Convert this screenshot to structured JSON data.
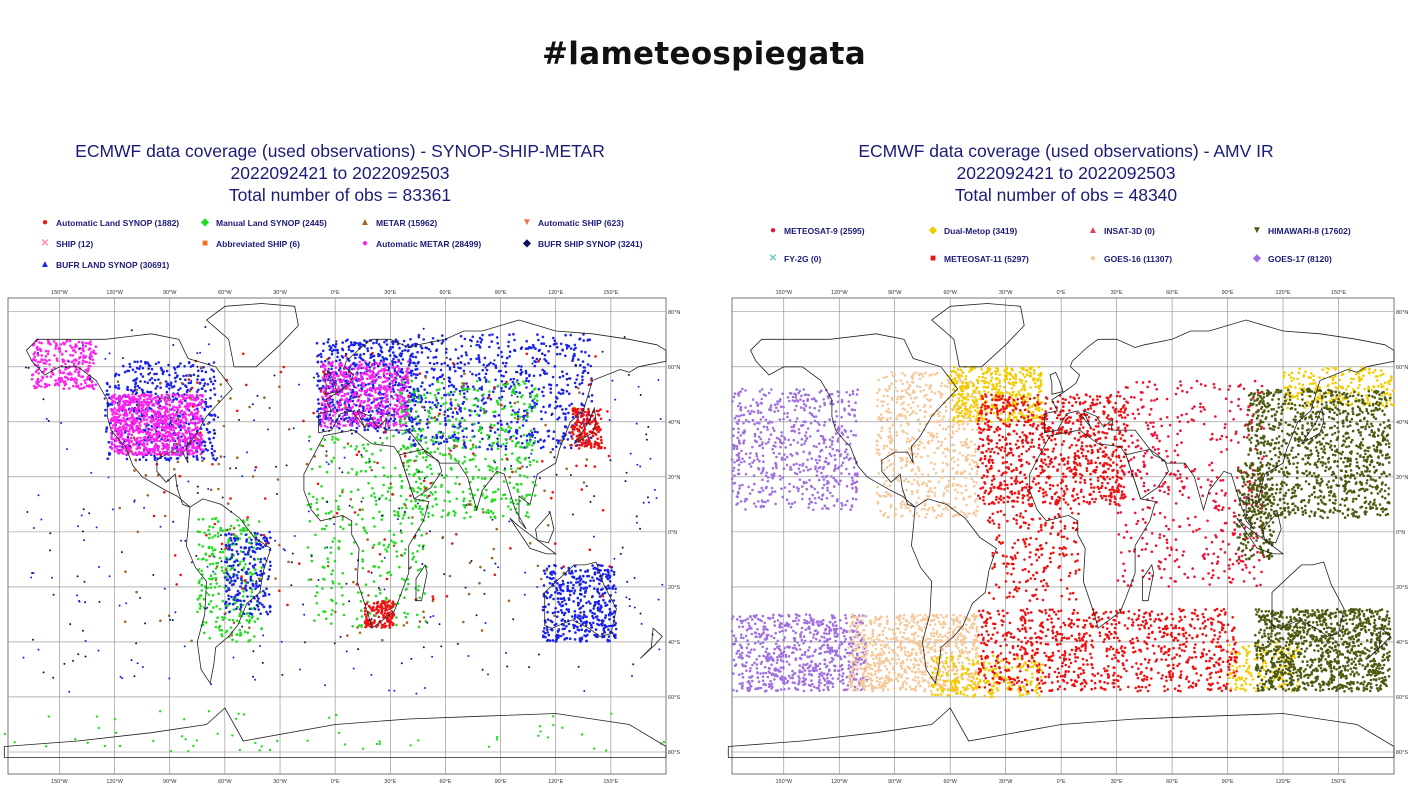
{
  "hashtag": "#lameteospiegata",
  "panels": [
    {
      "title_line1": "ECMWF data coverage (used observations) - SYNOP-SHIP-METAR",
      "title_line2": "2022092421 to 2022092503",
      "title_line3": "Total number of obs = 83361",
      "legend": [
        {
          "label": "Automatic Land SYNOP (1882)",
          "color": "#ee1111",
          "symbol": "●"
        },
        {
          "label": "Manual Land SYNOP (2445)",
          "color": "#22dd22",
          "symbol": "◆"
        },
        {
          "label": "METAR (15962)",
          "color": "#a0652a",
          "symbol": "▲"
        },
        {
          "label": "Automatic SHIP (623)",
          "color": "#f07050",
          "symbol": "▼"
        },
        {
          "label": "SHIP (12)",
          "color": "#ff88aa",
          "symbol": "✕"
        },
        {
          "label": "Abbreviated SHIP (6)",
          "color": "#ff6a20",
          "symbol": "■"
        },
        {
          "label": "Automatic METAR (28499)",
          "color": "#ff22ee",
          "symbol": "●"
        },
        {
          "label": "BUFR SHIP SYNOP (3241)",
          "color": "#101060",
          "symbol": "◆"
        },
        {
          "label": "BUFR LAND SYNOP (30691)",
          "color": "#1a22e8",
          "symbol": "▲"
        }
      ]
    },
    {
      "title_line1": "ECMWF data coverage (used observations) - AMV IR",
      "title_line2": "2022092421 to 2022092503",
      "title_line3": "Total number of obs = 48340",
      "legend": [
        {
          "label": "METEOSAT-9 (2595)",
          "color": "#ee1133",
          "symbol": "●"
        },
        {
          "label": "Dual-Metop (3419)",
          "color": "#f2cc00",
          "symbol": "◆"
        },
        {
          "label": "INSAT-3D (0)",
          "color": "#e04050",
          "symbol": "▲"
        },
        {
          "label": "HIMAWARI-8 (17602)",
          "color": "#4d5a10",
          "symbol": "▼"
        },
        {
          "label": "FY-2G (0)",
          "color": "#66cccc",
          "symbol": "✕"
        },
        {
          "label": "METEOSAT-11 (5297)",
          "color": "#ee1111",
          "symbol": "■"
        },
        {
          "label": "GOES-16 (11307)",
          "color": "#f6c99a",
          "symbol": "●"
        },
        {
          "label": "GOES-17 (8120)",
          "color": "#a070e0",
          "symbol": "◆"
        }
      ]
    }
  ],
  "map_axes": {
    "lon_labels": [
      "150°W",
      "120°W",
      "90°W",
      "60°W",
      "30°W",
      "0°E",
      "30°E",
      "60°E",
      "90°E",
      "120°E",
      "150°E"
    ],
    "lat_labels": [
      "80°N",
      "60°N",
      "40°N",
      "20°N",
      "0°N",
      "20°S",
      "40°S",
      "60°S",
      "80°S"
    ]
  }
}
